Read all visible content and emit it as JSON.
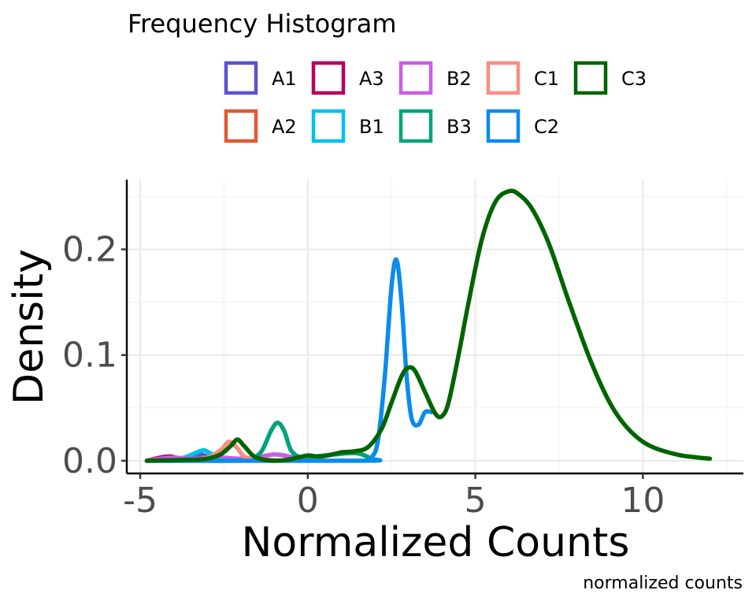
{
  "chart_data": {
    "type": "line",
    "title": "",
    "legend_title": "Frequency Histogram",
    "legend_position": "top",
    "xlabel": "Normalized Counts",
    "ylabel": "Density",
    "caption": "normalized counts",
    "xlim": [
      -5.4,
      13.0
    ],
    "ylim": [
      -0.012,
      0.266
    ],
    "x_ticks": [
      -5,
      0,
      5,
      10
    ],
    "x_tick_labels": [
      "-5",
      "0",
      "5",
      "10"
    ],
    "y_ticks": [
      0.0,
      0.1,
      0.2
    ],
    "y_tick_labels": [
      "0.0",
      "0.1",
      "0.2"
    ],
    "grid": true,
    "series": [
      {
        "name": "A1",
        "color": "#5B51D6",
        "x": [
          -4.8,
          -4.0,
          -3.7,
          -3.4,
          -3.2,
          -3.0,
          -2.8,
          -2.4,
          -2.0
        ],
        "y": [
          0,
          0.001,
          0.002,
          0.004,
          0.006,
          0.004,
          0.002,
          0.001,
          0
        ]
      },
      {
        "name": "A2",
        "color": "#E05A33",
        "x": [
          -4.8,
          -4.2,
          -3.8,
          -3.4,
          -3.0,
          -2.6,
          -2.2,
          -1.8
        ],
        "y": [
          0,
          0.002,
          0.002,
          0.001,
          0.003,
          0.002,
          0.001,
          0
        ]
      },
      {
        "name": "A3",
        "color": "#B8005F",
        "x": [
          -4.8,
          -4.4,
          -4.1,
          -3.8,
          -3.4,
          -3.0,
          -2.6
        ],
        "y": [
          0,
          0.003,
          0.004,
          0.002,
          0.001,
          0.001,
          0
        ]
      },
      {
        "name": "B1",
        "color": "#00C0EE",
        "x": [
          -4.8,
          -4.0,
          -3.6,
          -3.3,
          -3.1,
          -2.9,
          -2.6,
          -2.2,
          -1.8,
          -1.2
        ],
        "y": [
          0,
          0.001,
          0.004,
          0.008,
          0.01,
          0.007,
          0.003,
          0.002,
          0.001,
          0
        ]
      },
      {
        "name": "B2",
        "color": "#C95EE8",
        "x": [
          -4.8,
          -4.4,
          -4.0,
          -3.6,
          -3.2,
          -2.6,
          -2.0,
          -1.4,
          -1.0,
          -0.7,
          -0.4,
          0.0,
          0.5
        ],
        "y": [
          0,
          0.002,
          0.003,
          0.002,
          0.002,
          0.003,
          0.002,
          0.004,
          0.006,
          0.005,
          0.003,
          0.001,
          0
        ]
      },
      {
        "name": "B3",
        "color": "#00A37A",
        "x": [
          -4.8,
          -2.5,
          -1.8,
          -1.4,
          -1.1,
          -0.9,
          -0.7,
          -0.5,
          -0.2,
          0.2,
          0.8,
          1.5,
          2.0
        ],
        "y": [
          0,
          0,
          0.001,
          0.008,
          0.028,
          0.036,
          0.028,
          0.01,
          0.003,
          0.004,
          0.006,
          0.007,
          0
        ]
      },
      {
        "name": "C1",
        "color": "#F98E82",
        "x": [
          -4.8,
          -3.5,
          -3.0,
          -2.6,
          -2.35,
          -2.1,
          -1.9,
          -1.6,
          -1.2,
          -0.8
        ],
        "y": [
          0,
          0.001,
          0.003,
          0.01,
          0.018,
          0.012,
          0.004,
          0.002,
          0.001,
          0
        ]
      },
      {
        "name": "C2",
        "color": "#0A8BEE",
        "x": [
          -4.8,
          1.6,
          1.9,
          2.1,
          2.3,
          2.5,
          2.65,
          2.8,
          2.95,
          3.1,
          3.3,
          3.5,
          3.7
        ],
        "y": [
          0,
          0,
          0.003,
          0.02,
          0.08,
          0.165,
          0.19,
          0.15,
          0.08,
          0.04,
          0.034,
          0.046,
          0.046
        ]
      },
      {
        "name": "C3",
        "color": "#006400",
        "x": [
          -4.8,
          -3.5,
          -3.0,
          -2.6,
          -2.3,
          -2.1,
          -1.9,
          -1.6,
          -1.3,
          -1.0,
          -0.6,
          -0.3,
          0.0,
          0.3,
          0.6,
          1.0,
          1.4,
          1.8,
          2.2,
          2.5,
          2.8,
          3.0,
          3.2,
          3.5,
          3.8,
          4.0,
          4.2,
          4.5,
          4.8,
          5.2,
          5.6,
          6.0,
          6.3,
          6.7,
          7.2,
          7.8,
          8.5,
          9.2,
          10.0,
          11.0,
          12.0
        ],
        "y": [
          0,
          0.001,
          0.002,
          0.006,
          0.014,
          0.02,
          0.014,
          0.004,
          0.001,
          0.0,
          0.001,
          0.003,
          0.005,
          0.004,
          0.005,
          0.008,
          0.009,
          0.013,
          0.03,
          0.055,
          0.08,
          0.088,
          0.085,
          0.065,
          0.045,
          0.042,
          0.055,
          0.1,
          0.15,
          0.21,
          0.245,
          0.255,
          0.252,
          0.238,
          0.205,
          0.15,
          0.09,
          0.045,
          0.018,
          0.006,
          0.002
        ]
      }
    ]
  }
}
